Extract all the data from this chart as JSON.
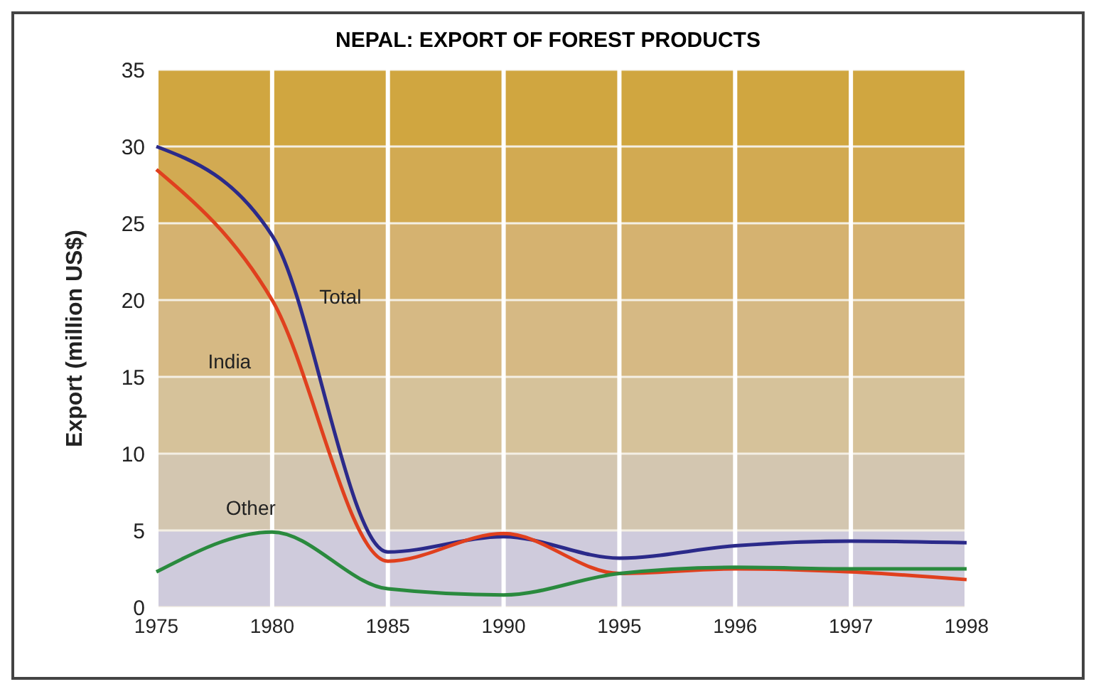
{
  "chart_data": {
    "type": "line",
    "title": "NEPAL: EXPORT OF FOREST PRODUCTS",
    "ylabel": "Export (million US$)",
    "categories": [
      "1975",
      "1980",
      "1985",
      "1990",
      "1995",
      "1996",
      "1997",
      "1998"
    ],
    "series": [
      {
        "name": "Total",
        "color": "#2b2a8a",
        "values": [
          30,
          24.2,
          3.6,
          4.6,
          3.2,
          4.0,
          4.3,
          4.2
        ]
      },
      {
        "name": "India",
        "color": "#e0401e",
        "values": [
          28.5,
          20,
          3,
          4.8,
          2.2,
          2.5,
          2.3,
          1.8
        ]
      },
      {
        "name": "Other",
        "color": "#2a8a3e",
        "values": [
          2.3,
          4.9,
          1.2,
          0.8,
          2.2,
          2.6,
          2.5,
          2.5
        ]
      }
    ],
    "ylim": [
      0,
      35
    ],
    "yticks": [
      0,
      5,
      10,
      15,
      20,
      25,
      30,
      35
    ],
    "grid": true,
    "marker": "none",
    "line_style": "solid",
    "bands": [
      {
        "axis": "y",
        "from": 0,
        "to": 5,
        "color": "#cfcbdc"
      },
      {
        "axis": "y",
        "from": 5,
        "to": 10,
        "color": "#d3c6b0"
      },
      {
        "axis": "y",
        "from": 10,
        "to": 15,
        "color": "#d6c29a"
      },
      {
        "axis": "y",
        "from": 15,
        "to": 20,
        "color": "#d6b984"
      },
      {
        "axis": "y",
        "from": 20,
        "to": 25,
        "color": "#d5b270"
      },
      {
        "axis": "y",
        "from": 25,
        "to": 30,
        "color": "#d2aa52"
      },
      {
        "axis": "y",
        "from": 30,
        "to": 35,
        "color": "#d0a640"
      }
    ]
  }
}
